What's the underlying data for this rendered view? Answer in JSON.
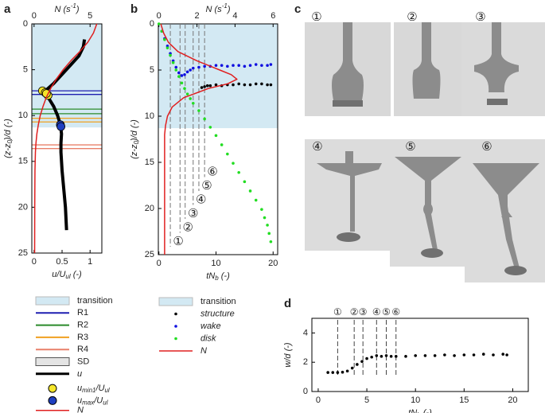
{
  "chart_data": [
    {
      "panel": "a",
      "type": "line",
      "xlabel": [
        "u/U",
        "ul",
        " (-)"
      ],
      "x2label": [
        "N (s",
        "-1",
        ")"
      ],
      "ylabel": [
        "(z-z",
        "0",
        ")/d (-)"
      ],
      "xlim": [
        -0.04,
        1.21
      ],
      "xticks": [
        0,
        0.5,
        1
      ],
      "x2lim": [
        -0.2,
        6.05
      ],
      "x2ticks": [
        0,
        5
      ],
      "ylim": [
        0,
        25
      ],
      "yticks": [
        0,
        5,
        10,
        15,
        20,
        25
      ],
      "y_reversed": true,
      "legend": "below",
      "bands": [
        {
          "name": "transition",
          "color": "#d3e9f3",
          "range": [
            0,
            11.3
          ]
        }
      ],
      "levels": [
        {
          "name": "R1",
          "color": "#1f1fb0",
          "values": [
            7.3,
            7.7
          ]
        },
        {
          "name": "R2",
          "color": "#2a8a2a",
          "values": [
            9.3,
            9.8
          ]
        },
        {
          "name": "R3",
          "color": "#f0a020",
          "values": [
            10.3,
            10.7
          ]
        },
        {
          "name": "R4",
          "color": "#e8806a",
          "values": [
            13.2,
            13.6
          ]
        }
      ],
      "sd": {
        "name": "SD",
        "color": "#e4e4e4"
      },
      "series": [
        {
          "name": [
            "u"
          ],
          "color": "#000000",
          "mode": "line",
          "width": 4,
          "x": [
            0.9,
            0.88,
            0.8,
            0.65,
            0.5,
            0.35,
            0.22,
            0.2,
            0.25,
            0.35,
            0.42,
            0.47,
            0.49,
            0.48,
            0.48,
            0.5,
            0.53,
            0.56,
            0.58
          ],
          "y": [
            1.7,
            2.5,
            3.5,
            4.5,
            5.5,
            6.5,
            7.2,
            7.6,
            8,
            9,
            10,
            11,
            12,
            13,
            14,
            16,
            18,
            20,
            22.5
          ]
        },
        {
          "name": [
            "u",
            "min1",
            "/U",
            "ul"
          ],
          "color": "#f5e62a",
          "edgecolor": "#000000",
          "mode": "markers",
          "marker_size": 5,
          "x": [
            0.15,
            0.2,
            0.25,
            0.22
          ],
          "y": [
            7.3,
            7.5,
            7.8,
            7.6
          ]
        },
        {
          "name": [
            "u",
            "max",
            "/U",
            "ul"
          ],
          "color": "#1f3fc0",
          "edgecolor": "#000000",
          "mode": "markers",
          "marker_size": 5,
          "x": [
            0.47,
            0.48
          ],
          "y": [
            11,
            11.2
          ]
        },
        {
          "name": [
            "N"
          ],
          "color": "#e02020",
          "mode": "line",
          "width": 1.5,
          "axis": "x2",
          "x": [
            5.6,
            5.3,
            4.8,
            4.1,
            3.3,
            2.6,
            2,
            1.5,
            1.1,
            0.8,
            0.55,
            0.38,
            0.25,
            0.17,
            0.12,
            0.08,
            0.06,
            0.05
          ],
          "y": [
            0,
            1,
            2,
            3,
            4,
            5,
            6,
            7,
            8,
            9,
            10,
            11,
            12,
            13,
            14,
            16,
            20,
            25
          ]
        }
      ]
    },
    {
      "panel": "b",
      "type": "scatter",
      "xlabel": [
        "tN",
        "b",
        "  (-)"
      ],
      "x2label": [
        "N (s",
        "-1",
        ")"
      ],
      "ylabel": [
        "(z-z",
        "0",
        ")/d (-)"
      ],
      "xlim": [
        -0.1,
        20.8
      ],
      "xticks": [
        0,
        10,
        20
      ],
      "x2lim": [
        -0.03,
        6.24
      ],
      "x2ticks": [
        0,
        2,
        4,
        6
      ],
      "ylim": [
        0,
        25
      ],
      "yticks": [
        0,
        5,
        10,
        15,
        20,
        25
      ],
      "y_reversed": true,
      "legend": "below",
      "bands": [
        {
          "name": "transition",
          "color": "#d3e9f3",
          "range": [
            0,
            11.3
          ]
        }
      ],
      "series": [
        {
          "name": [
            "structure"
          ],
          "color": "#000000",
          "mode": "markers",
          "marker_size": 1.8,
          "x": [
            7.5,
            8,
            8.5,
            9,
            10,
            11,
            12,
            13,
            14,
            15,
            16,
            17,
            18,
            19,
            19.6
          ],
          "y": [
            6.9,
            6.8,
            6.7,
            6.7,
            6.6,
            6.7,
            6.6,
            6.6,
            6.5,
            6.6,
            6.6,
            6.5,
            6.5,
            6.6,
            6.6
          ]
        },
        {
          "name": [
            "wake"
          ],
          "color": "#1010e0",
          "mode": "markers",
          "marker_size": 1.8,
          "x": [
            0.5,
            1,
            1.5,
            2,
            2.5,
            3,
            3.5,
            4,
            4.5,
            5,
            5.5,
            6,
            7,
            8,
            9,
            10,
            11,
            12,
            13,
            14,
            15,
            16,
            17,
            18,
            19,
            19.6
          ],
          "y": [
            0.8,
            1.6,
            2.4,
            3.2,
            4,
            4.7,
            5.3,
            5.6,
            5.5,
            5.2,
            5,
            4.8,
            4.7,
            4.6,
            4.6,
            4.5,
            4.5,
            4.6,
            4.5,
            4.5,
            4.6,
            4.5,
            4.4,
            4.5,
            4.5,
            4.4
          ]
        },
        {
          "name": [
            "disk"
          ],
          "color": "#22dd22",
          "mode": "markers",
          "marker_size": 1.8,
          "x": [
            0,
            0.5,
            1,
            1.5,
            2,
            2.5,
            3,
            3.5,
            4,
            4.5,
            5,
            5.5,
            6,
            7,
            8,
            9,
            10,
            11,
            12,
            13,
            14,
            15,
            16,
            17,
            18,
            18.5,
            19,
            19.3,
            19.6
          ],
          "y": [
            0,
            0.8,
            1.7,
            2.6,
            3.4,
            4.2,
            5,
            5.7,
            6.4,
            7,
            7.6,
            8.1,
            8.6,
            9.4,
            10.3,
            11.2,
            12.1,
            13.1,
            14.1,
            15.1,
            16.1,
            17.1,
            18.1,
            19.1,
            20.1,
            21,
            21.8,
            22.7,
            23.6
          ]
        },
        {
          "name": [
            "N"
          ],
          "color": "#e02020",
          "mode": "line",
          "width": 1.5,
          "axis": "x2",
          "x": [
            0.1,
            0.25,
            0.5,
            1,
            2,
            3.2,
            3.8,
            4.1,
            3.6,
            2.6,
            1.3,
            0.7,
            0.45,
            0.35,
            0.3,
            0.3,
            0.3,
            0.3
          ],
          "y": [
            0,
            1,
            2,
            3,
            4,
            5,
            5.5,
            6,
            6.5,
            7,
            8,
            9,
            10,
            11,
            12,
            14,
            18,
            25
          ]
        }
      ],
      "events": {
        "x": [
          2,
          3.7,
          4.6,
          6,
          7,
          8
        ],
        "labels": [
          "①",
          "②",
          "③",
          "④",
          "⑤",
          "⑥"
        ]
      }
    },
    {
      "panel": "d",
      "type": "scatter",
      "xlabel": [
        "tN",
        "b",
        "  (-)"
      ],
      "ylabel": [
        "w/d (-)"
      ],
      "xlim": [
        -0.65,
        21.6
      ],
      "xticks": [
        0,
        5,
        10,
        15,
        20
      ],
      "ylim": [
        0,
        5
      ],
      "yticks": [
        0,
        2,
        4
      ],
      "series": [
        {
          "color": "#000000",
          "mode": "markers",
          "marker_size": 1.8,
          "x": [
            1,
            1.5,
            2,
            2.5,
            3,
            3.5,
            4,
            4.5,
            5,
            5.5,
            6,
            6.5,
            7,
            7.5,
            8,
            9,
            10,
            11,
            12,
            13,
            14,
            15,
            16,
            17,
            18,
            19,
            19.4
          ],
          "y": [
            1.3,
            1.3,
            1.3,
            1.32,
            1.4,
            1.6,
            1.85,
            2.05,
            2.25,
            2.35,
            2.45,
            2.4,
            2.45,
            2.4,
            2.4,
            2.4,
            2.45,
            2.45,
            2.45,
            2.5,
            2.45,
            2.5,
            2.5,
            2.55,
            2.5,
            2.55,
            2.5
          ]
        }
      ],
      "events": {
        "x": [
          2,
          3.7,
          4.6,
          6,
          7,
          8
        ],
        "labels": [
          "①",
          "②",
          "③",
          "④",
          "⑤",
          "⑥"
        ]
      }
    }
  ],
  "panel_c": {
    "label": "c",
    "frames": [
      "①",
      "②",
      "③",
      "④",
      "⑤",
      "⑥"
    ]
  }
}
